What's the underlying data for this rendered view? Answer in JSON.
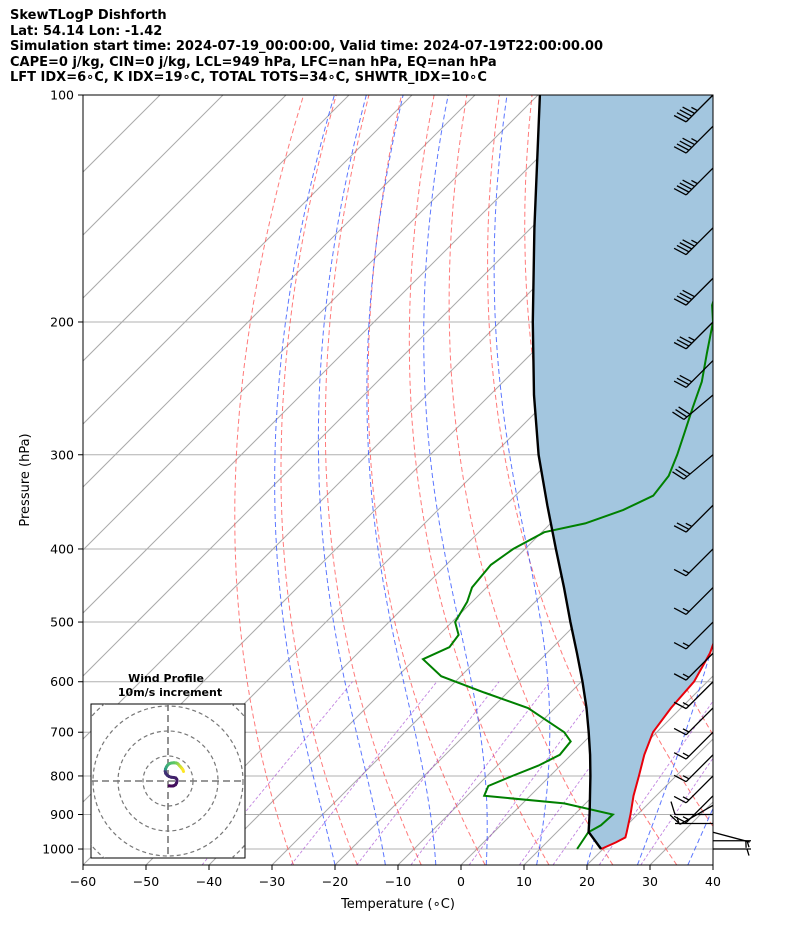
{
  "header": {
    "line1": "SkewTLogP Dishforth",
    "line2": "Lat: 54.14   Lon: -1.42",
    "line3": "Simulation start time: 2024-07-19_00:00:00, Valid time: 2024-07-19T22:00:00.00",
    "line4": "CAPE=0 j/kg, CIN=0 j/kg, LCL=949 hPa, LFC=nan hPa, EQ=nan hPa",
    "line5": "LFT IDX=6∘C, K IDX=19∘C, TOTAL TOTS=34∘C, SHWTR_IDX=10∘C"
  },
  "chart_data": {
    "type": "line",
    "subtype": "skew-T log-P diagram",
    "xlabel": "Temperature (∘C)",
    "ylabel": "Pressure (hPa)",
    "xlim": [
      -60,
      40
    ],
    "ylim_hpa": [
      1050,
      100
    ],
    "y_scale": "log",
    "x_ticks": [
      -60,
      -50,
      -40,
      -30,
      -20,
      -10,
      0,
      10,
      20,
      30,
      40
    ],
    "x_tick_labels": [
      "−60",
      "−50",
      "−40",
      "−30",
      "−20",
      "−10",
      "0",
      "10",
      "20",
      "30",
      "40"
    ],
    "y_ticks": [
      1000,
      900,
      800,
      700,
      600,
      500,
      400,
      300,
      200,
      100
    ],
    "grid": true,
    "colors": {
      "temperature": "#e8000b",
      "dewpoint": "#008000",
      "parcel": "#000000",
      "cape_fill": "#a3c6df",
      "dry_adiabat": "#ff4d4d",
      "moist_adiabat": "#3355ff",
      "mixing_ratio": "#9933cc",
      "isotherm": "#aaaaaa"
    },
    "series": [
      {
        "key": "temperature",
        "pressure": [
          1000,
          980,
          965,
          950,
          900,
          850,
          800,
          750,
          700,
          650,
          600,
          550,
          500,
          450,
          400,
          375,
          350,
          325,
          300,
          275,
          250,
          225,
          210,
          200,
          190,
          180,
          170,
          160,
          150,
          140,
          130,
          120,
          110,
          100
        ],
        "values": [
          19.7,
          21.0,
          21.7,
          21.1,
          18.9,
          16.4,
          14.1,
          11.6,
          9.4,
          8.4,
          7.9,
          5.9,
          2.7,
          -0.9,
          -4.6,
          -7.2,
          -9.5,
          -11.9,
          -14.3,
          -18.6,
          -23.2,
          -28.5,
          -32.0,
          -35.0,
          -34.2,
          -33.2,
          -34.9,
          -34.2,
          -28.1,
          -23.9,
          -17.7,
          -10.9,
          -5.4,
          -4.0
        ]
      },
      {
        "key": "dewpoint",
        "pressure": [
          1000,
          950,
          930,
          900,
          870,
          850,
          825,
          800,
          775,
          750,
          720,
          700,
          650,
          620,
          590,
          560,
          540,
          520,
          500,
          470,
          450,
          420,
          400,
          380,
          370,
          355,
          340,
          320,
          300,
          280,
          260,
          240,
          220,
          200,
          190,
          180,
          170,
          160,
          150,
          140,
          130,
          120,
          110,
          100
        ],
        "values": [
          15.9,
          15.0,
          15.9,
          16.1,
          6.6,
          -7.3,
          -8.2,
          -6.0,
          -3.5,
          -1.8,
          -2.2,
          -4.7,
          -14.3,
          -23.7,
          -33.1,
          -38.7,
          -36.4,
          -36.9,
          -39.5,
          -40.8,
          -42.3,
          -42.9,
          -41.9,
          -39.6,
          -34.5,
          -30.6,
          -28.1,
          -28.8,
          -30.8,
          -33.2,
          -35.8,
          -38.5,
          -42.2,
          -46.2,
          -49.0,
          -50.9,
          -53.0,
          -56.2,
          -59.0,
          -63.2,
          -66.9,
          -70.7,
          -74.5,
          -78.0
        ]
      },
      {
        "key": "parcel",
        "pressure": [
          1000,
          949,
          900,
          850,
          800,
          750,
          700,
          650,
          600,
          550,
          500,
          450,
          400,
          350,
          300,
          250,
          200,
          150,
          100
        ],
        "values": [
          19.7,
          15.0,
          12.4,
          9.5,
          6.4,
          3.0,
          -0.8,
          -5.0,
          -9.8,
          -15.2,
          -21.2,
          -27.7,
          -35.1,
          -43.4,
          -52.8,
          -63.0,
          -74.8,
          -89.5,
          -109.7
        ]
      }
    ],
    "wind_barbs": {
      "pressure": [
        1000,
        975,
        950,
        925,
        900,
        875,
        850,
        800,
        750,
        700,
        650,
        600,
        550,
        500,
        450,
        400,
        350,
        300,
        250,
        225,
        200,
        175,
        150,
        125,
        110,
        100
      ],
      "speed_kt": [
        5,
        5,
        5,
        5,
        10,
        12,
        15,
        15,
        15,
        15,
        15,
        15,
        15,
        15,
        15,
        15,
        25,
        30,
        30,
        30,
        35,
        40,
        45,
        45,
        45,
        45
      ],
      "direction_deg": [
        90,
        90,
        105,
        270,
        270,
        240,
        225,
        225,
        225,
        225,
        225,
        225,
        225,
        225,
        225,
        225,
        225,
        230,
        230,
        225,
        225,
        225,
        225,
        225,
        225,
        225
      ]
    },
    "inset": {
      "title_line1": "Wind Profile",
      "title_line2": "10m/s increment",
      "hodograph_u": [
        0.5,
        1.0,
        1.6,
        2.3,
        3.0,
        3.4,
        3.6,
        3.5,
        3.1,
        2.3,
        1.3,
        0.4,
        -0.3,
        -0.9,
        -1.1,
        -1.0,
        -0.6,
        -0.1,
        0.5,
        1.4,
        2.4,
        3.3,
        3.9,
        4.2,
        4.6,
        5.0,
        5.5,
        5.9,
        6.2
      ],
      "hodograph_v": [
        -1.9,
        -2.0,
        -2.0,
        -1.9,
        -1.5,
        -0.8,
        0.0,
        0.7,
        1.2,
        1.4,
        1.5,
        1.8,
        2.3,
        3.0,
        3.9,
        4.8,
        5.7,
        6.4,
        6.9,
        7.2,
        7.3,
        7.2,
        6.9,
        6.6,
        6.1,
        5.7,
        5.1,
        4.6,
        3.8
      ]
    }
  }
}
